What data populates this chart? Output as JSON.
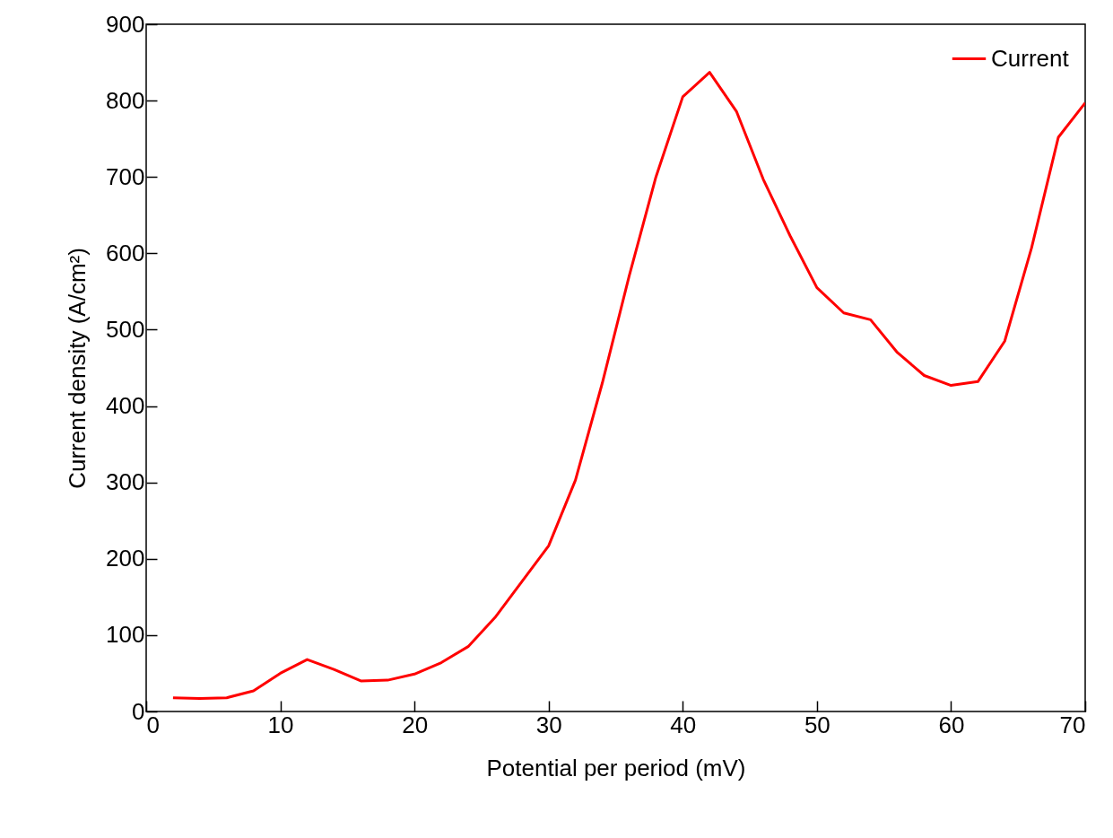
{
  "chart_data": {
    "type": "line",
    "xlabel": "Potential per period (mV)",
    "ylabel": "Current density (A/cm²)",
    "x": [
      2,
      4,
      6,
      8,
      10,
      12,
      14,
      16,
      18,
      20,
      22,
      24,
      26,
      28,
      30,
      32,
      34,
      36,
      38,
      40,
      42,
      44,
      46,
      48,
      50,
      52,
      54,
      56,
      58,
      60,
      62,
      64,
      66,
      68,
      70
    ],
    "series": [
      {
        "name": "Current",
        "color": "#ff0000",
        "values": [
          18,
          17,
          18,
          27,
          50,
          68,
          55,
          40,
          41,
          49,
          64,
          85,
          123,
          170,
          217,
          303,
          430,
          570,
          700,
          805,
          837,
          786,
          697,
          623,
          555,
          522,
          513,
          470,
          440,
          427,
          432,
          485,
          607,
          752,
          797
        ]
      }
    ],
    "xlim": [
      0,
      70
    ],
    "xticks": [
      0,
      10,
      20,
      30,
      40,
      50,
      60,
      70
    ],
    "ylim": [
      0,
      900
    ],
    "yticks": [
      0,
      100,
      200,
      300,
      400,
      500,
      600,
      700,
      800,
      900
    ],
    "grid": false,
    "legend": "top right",
    "marker": "none",
    "line_style": "solid"
  }
}
